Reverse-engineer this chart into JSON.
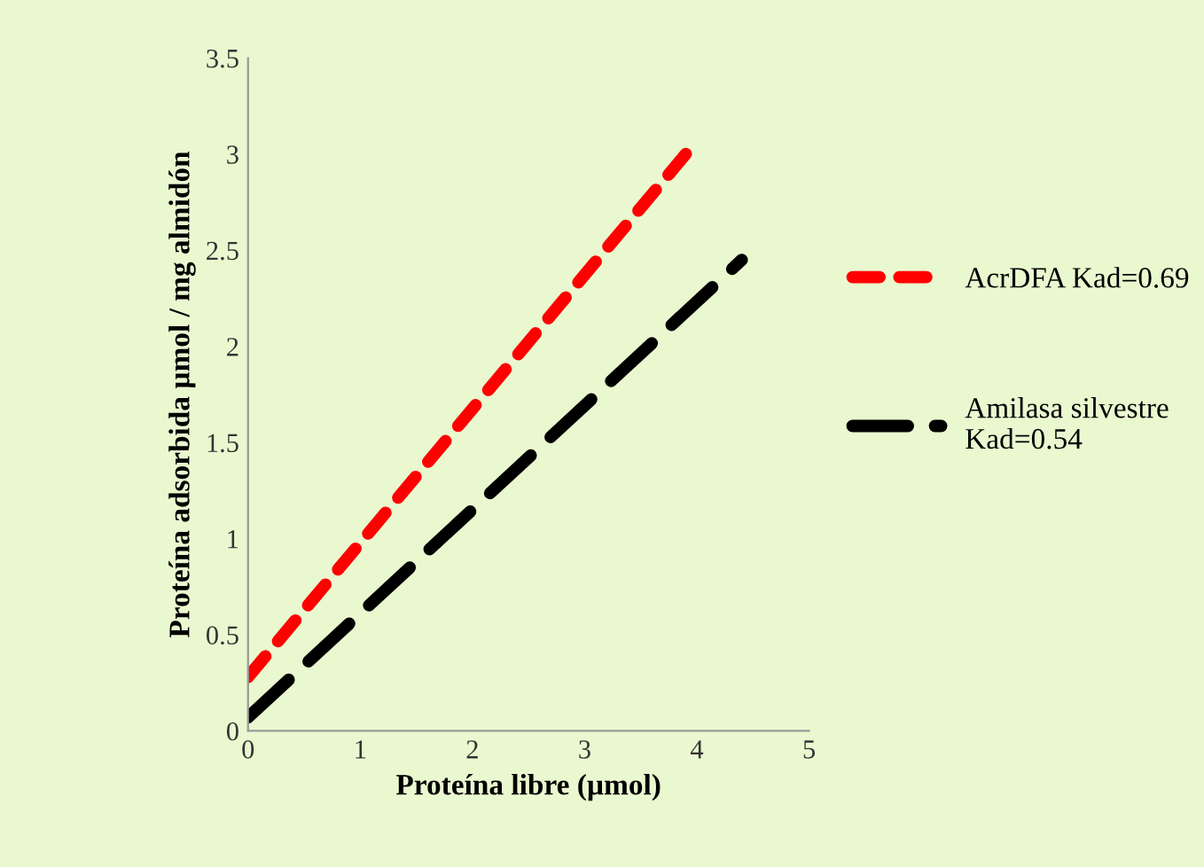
{
  "chart_data": {
    "type": "line",
    "xlabel": "Proteína libre (µmol)",
    "ylabel": "Proteína adsorbida µmol / mg almidón",
    "xlim": [
      0,
      5
    ],
    "ylim": [
      0,
      3.5
    ],
    "xticks": [
      0,
      1,
      2,
      3,
      4,
      5
    ],
    "yticks": [
      0,
      0.5,
      1,
      1.5,
      2,
      2.5,
      3,
      3.5
    ],
    "grid": false,
    "legend": "right",
    "marker": "none",
    "series": [
      {
        "name": "AcrDFA Kad=0.69",
        "color": "#ff0000",
        "x": [
          0,
          4
        ],
        "values": [
          0.28,
          3.07
        ],
        "line_style": "dashed"
      },
      {
        "name": "Amilasa silvestre\nKad=0.54",
        "color": "#000000",
        "x": [
          0,
          4.4
        ],
        "values": [
          0.07,
          2.45
        ],
        "line_style": "dashed"
      }
    ]
  }
}
